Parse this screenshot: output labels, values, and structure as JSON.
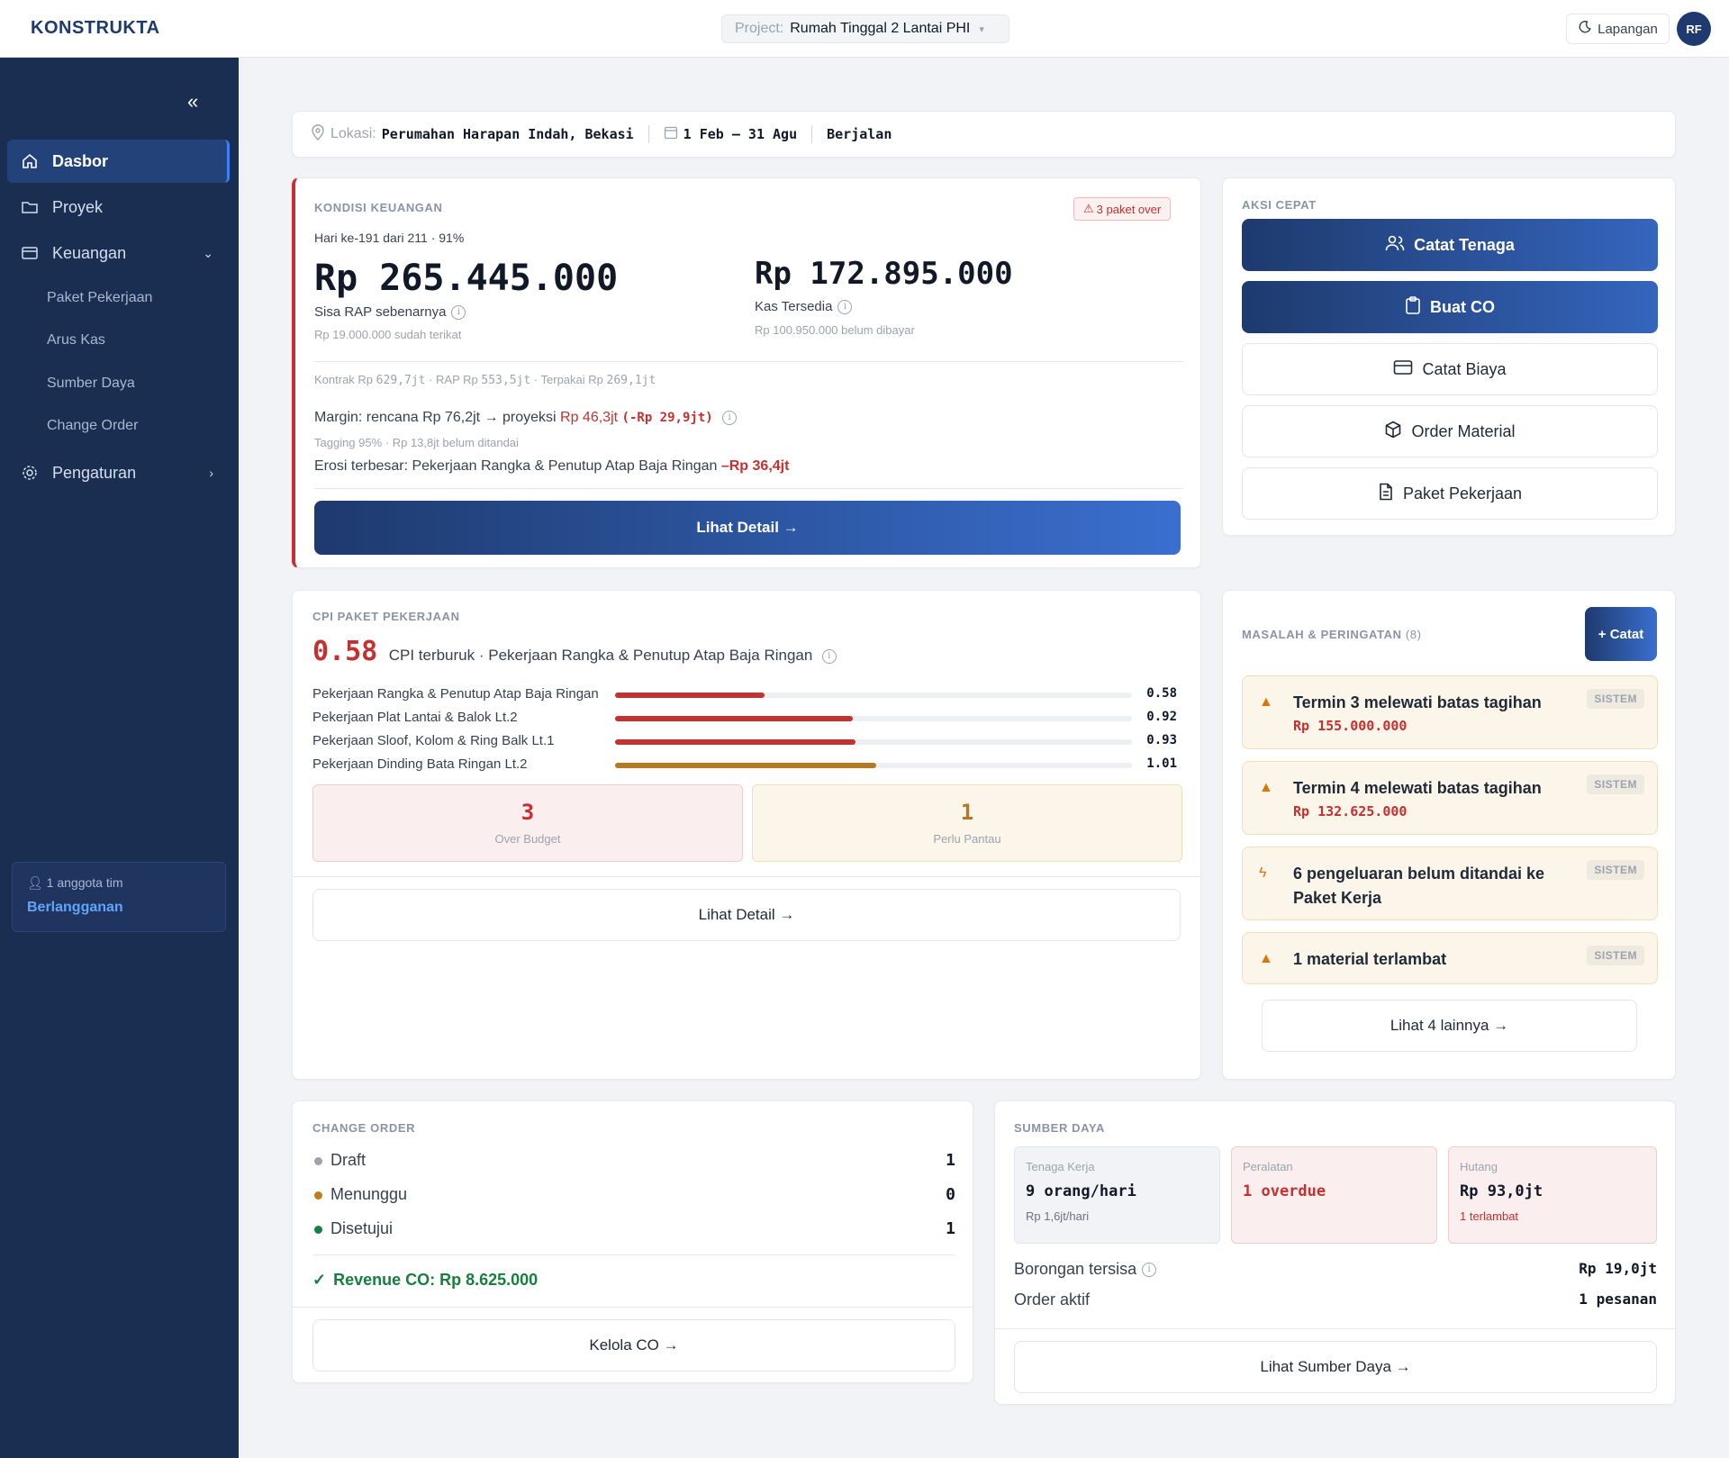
{
  "app": {
    "logo": "KONSTRUKTA"
  },
  "header": {
    "project_label": "Project:",
    "project_value": "Rumah Tinggal 2 Lantai PHI",
    "mode_label": "Lapangan",
    "avatar_initials": "RF"
  },
  "sidebar": {
    "items": [
      {
        "label": "Dasbor",
        "icon": "home-icon",
        "active": true
      },
      {
        "label": "Proyek",
        "icon": "folder-icon"
      },
      {
        "label": "Keuangan",
        "icon": "card-icon",
        "expanded": true
      },
      {
        "label": "Pengaturan",
        "icon": "gear-icon"
      }
    ],
    "sub_items": [
      "Paket Pekerjaan",
      "Arus Kas",
      "Sumber Daya",
      "Change Order"
    ],
    "team_count": "1 anggota tim",
    "subscription": "Berlangganan"
  },
  "info_bar": {
    "location_label": "Lokasi:",
    "location_value": "Perumahan Harapan Indah, Bekasi",
    "date_range": "1 Feb – 31 Agu",
    "status": "Berjalan"
  },
  "finance": {
    "title": "KONDISI KEUANGAN",
    "badge": "3 paket over",
    "day_progress": "Hari ke-191 dari 211 · 91%",
    "sisa_rap_amount": "Rp 265.445.000",
    "sisa_rap_label": "Sisa RAP sebenarnya",
    "sisa_rap_note": "Rp 19.000.000 sudah terikat",
    "kas_amount": "Rp 172.895.000",
    "kas_label": "Kas Tersedia",
    "kas_note": "Rp 100.950.000 belum dibayar",
    "summary": {
      "kontrak_label": "Kontrak Rp",
      "kontrak_value": "629,7jt",
      "rap_label": "· RAP Rp",
      "rap_value": "553,5jt",
      "terpakai_label": "· Terpakai Rp",
      "terpakai_value": "269,1jt"
    },
    "margin_text": "Margin: rencana Rp 76,2jt → proyeksi",
    "margin_proj": "Rp 46,3jt",
    "margin_delta": "(-Rp 29,9jt)",
    "tagging": "Tagging 95% · Rp 13,8jt belum ditandai",
    "erosi_label": "Erosi terbesar: Pekerjaan Rangka & Penutup Atap Baja Ringan",
    "erosi_value": "–Rp 36,4jt",
    "detail_button": "Lihat Detail →"
  },
  "quick_actions": {
    "title": "AKSI CEPAT",
    "buttons": [
      {
        "label": "Catat Tenaga",
        "icon": "users-icon"
      },
      {
        "label": "Buat CO",
        "icon": "clipboard-icon"
      },
      {
        "label": "Catat Biaya",
        "icon": "card-icon"
      },
      {
        "label": "Order Material",
        "icon": "box-icon"
      },
      {
        "label": "Paket Pekerjaan",
        "icon": "document-icon"
      }
    ]
  },
  "cpi": {
    "title": "CPI PAKET PEKERJAAN",
    "worst_value": "0.58",
    "worst_label": "CPI terburuk · Pekerjaan Rangka & Penutup Atap Baja Ringan",
    "rows": [
      {
        "name": "Pekerjaan Rangka & Penutup Atap Baja Ringan",
        "value": "0.58",
        "fill": 0.29,
        "color": "#c53030"
      },
      {
        "name": "Pekerjaan Plat Lantai & Balok Lt.2",
        "value": "0.92",
        "fill": 0.46,
        "color": "#c53030"
      },
      {
        "name": "Pekerjaan Sloof, Kolom & Ring Balk Lt.1",
        "value": "0.93",
        "fill": 0.465,
        "color": "#c53030"
      },
      {
        "name": "Pekerjaan Dinding Bata Ringan Lt.2",
        "value": "1.01",
        "fill": 0.505,
        "color": "#b7791f"
      }
    ],
    "over_budget_count": "3",
    "over_budget_label": "Over Budget",
    "watch_count": "1",
    "watch_label": "Perlu Pantau",
    "detail_button": "Lihat Detail →"
  },
  "issues": {
    "title": "MASALAH & PERINGATAN",
    "count": "(8)",
    "add_button": "+ Catat",
    "items": [
      {
        "text": "Termin 3 melewati batas tagihan",
        "amount": "Rp 155.000.000",
        "tag": "SISTEM",
        "icon": "warning-icon"
      },
      {
        "text": "Termin 4 melewati batas tagihan",
        "amount": "Rp 132.625.000",
        "tag": "SISTEM",
        "icon": "warning-icon"
      },
      {
        "text": "6 pengeluaran belum ditandai ke Paket Kerja",
        "amount": "",
        "tag": "SISTEM",
        "icon": "bolt-icon"
      },
      {
        "text": "1 material terlambat",
        "amount": "",
        "tag": "SISTEM",
        "icon": "warning-icon"
      }
    ],
    "more_button": "Lihat 4 lainnya →"
  },
  "change_order": {
    "title": "CHANGE ORDER",
    "rows": [
      {
        "label": "Draft",
        "count": "1",
        "color": "#9ca3af"
      },
      {
        "label": "Menunggu",
        "count": "0",
        "color": "#c27a1a"
      },
      {
        "label": "Disetujui",
        "count": "1",
        "color": "#15803d"
      }
    ],
    "revenue": "Revenue CO: Rp 8.625.000",
    "manage_button": "Kelola CO →"
  },
  "resources": {
    "title": "SUMBER DAYA",
    "boxes": [
      {
        "label": "Tenaga Kerja",
        "value": "9 orang/hari",
        "sub": "Rp 1,6jt/hari"
      },
      {
        "label": "Peralatan",
        "value": "1 overdue",
        "sub": ""
      },
      {
        "label": "Hutang",
        "value": "Rp 93,0jt",
        "sub": "1 terlambat"
      }
    ],
    "borongan_label": "Borongan tersisa",
    "borongan_value": "Rp 19,0jt",
    "order_label": "Order aktif",
    "order_value": "1 pesanan",
    "view_button": "Lihat Sumber Daya →"
  }
}
